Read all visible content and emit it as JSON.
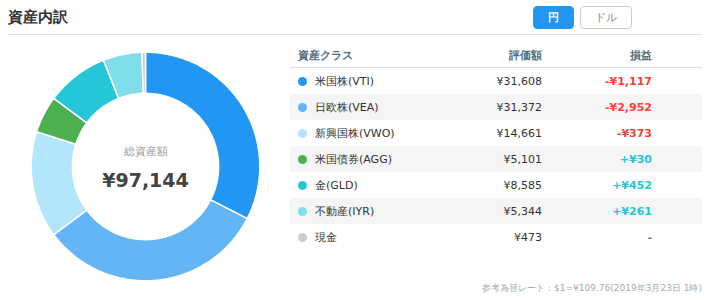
{
  "chart_data": {
    "type": "donut",
    "title": "資産内訳",
    "categories": [
      "米国株(VTI)",
      "日欧株(VEA)",
      "新興国株(VWO)",
      "米国債券(AGG)",
      "金(GLD)",
      "不動産(IYR)",
      "現金"
    ],
    "values": [
      31608,
      31372,
      14661,
      5101,
      8585,
      5344,
      473
    ],
    "value_labels": [
      "¥31,608",
      "¥31,372",
      "¥14,661",
      "¥5,101",
      "¥8,585",
      "¥5,344",
      "¥473"
    ],
    "colors": [
      "#2196F3",
      "#64B5F6",
      "#B3E5FC",
      "#4CAF50",
      "#26C6DA",
      "#80DEEA",
      "#CCCCCC"
    ],
    "center_label": "総資産額",
    "center_value": {
      "value": 97144,
      "label": "¥97,144"
    },
    "buttons": [
      "円",
      "ドル"
    ],
    "table_headers": [
      "資産クラス",
      "評価額",
      "損益"
    ],
    "gains": [
      -1117,
      -2952,
      -373,
      30,
      452,
      261,
      null
    ],
    "gain_labels": [
      "-¥1,117",
      "-¥2,952",
      "-¥373",
      "+¥30",
      "+¥452",
      "+¥261",
      "-"
    ],
    "gain_colors": {
      "negative": "#F44336",
      "positive": "#26C6DA",
      "neutral": "#777777"
    },
    "footnote": "参考為替レート：$1=¥109.76(2019年3月23日 1時)"
  }
}
